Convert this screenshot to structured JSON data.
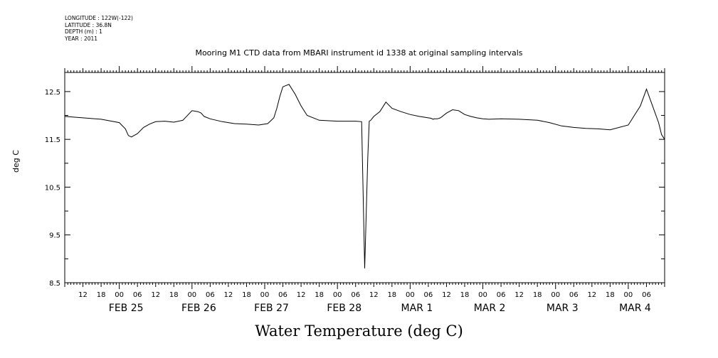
{
  "meta": {
    "longitude": "LONGITUDE : 122W(-122)",
    "latitude": "LATITUDE : 36.8N",
    "depth": "DEPTH (m) : 1",
    "year": "YEAR : 2011"
  },
  "chart_data": {
    "type": "line",
    "title": "Mooring M1 CTD data from MBARI instrument id 1338 at original sampling intervals",
    "xlabel": "Water Temperature (deg C)",
    "ylabel": "deg C",
    "ylim": [
      8.5,
      12.9
    ],
    "xlim_hours": [
      0,
      198
    ],
    "y_ticks": [
      "12.5",
      "11.5",
      "10.5",
      "9.5",
      "8.5"
    ],
    "x_hour_ticks": [
      "12",
      "18",
      "00",
      "06",
      "12",
      "18",
      "00",
      "06",
      "12",
      "18",
      "00",
      "06",
      "12",
      "18",
      "00",
      "06",
      "12",
      "18",
      "00",
      "06",
      "12",
      "18",
      "00",
      "06",
      "12",
      "18",
      "00",
      "06",
      "12",
      "18",
      "00",
      "06"
    ],
    "x_day_labels": [
      "FEB 25",
      "FEB 26",
      "FEB 27",
      "FEB 28",
      "MAR  1",
      "MAR  2",
      "MAR  3",
      "MAR  4"
    ],
    "grid": false,
    "series": [
      {
        "x": [
          0,
          6,
          12,
          18,
          20,
          21,
          22,
          24,
          26,
          28,
          30,
          33,
          36,
          39,
          42,
          44,
          45,
          46,
          48,
          50,
          52,
          54,
          56,
          60,
          64,
          67,
          69,
          70,
          71,
          72,
          74,
          76,
          78,
          80,
          84,
          90,
          96,
          98,
          99,
          100,
          100.5,
          101,
          102,
          104,
          106,
          108,
          111,
          114,
          117,
          120,
          121,
          121.5,
          122,
          123,
          124,
          126,
          128,
          130,
          132,
          134,
          136,
          138,
          140,
          144,
          150,
          156,
          160,
          164,
          168,
          172,
          176,
          180,
          186,
          190,
          192,
          194,
          196,
          197,
          198
        ],
        "y": [
          11.98,
          11.95,
          11.92,
          11.85,
          11.72,
          11.58,
          11.55,
          11.62,
          11.75,
          11.82,
          11.87,
          11.88,
          11.86,
          11.9,
          12.1,
          12.08,
          12.05,
          11.98,
          11.93,
          11.9,
          11.87,
          11.85,
          11.83,
          11.82,
          11.8,
          11.83,
          11.95,
          12.15,
          12.4,
          12.6,
          12.65,
          12.45,
          12.2,
          12.0,
          11.9,
          11.88,
          11.88,
          11.87,
          8.8,
          11.1,
          11.88,
          11.9,
          11.98,
          12.08,
          12.28,
          12.15,
          12.08,
          12.02,
          11.98,
          11.95,
          11.94,
          11.92,
          11.93,
          11.93,
          11.95,
          12.05,
          12.12,
          12.1,
          12.02,
          11.98,
          11.95,
          11.93,
          11.92,
          11.93,
          11.92,
          11.9,
          11.85,
          11.78,
          11.75,
          11.73,
          11.72,
          11.7,
          11.8,
          12.2,
          12.55,
          12.2,
          11.85,
          11.6,
          11.5
        ]
      }
    ]
  }
}
